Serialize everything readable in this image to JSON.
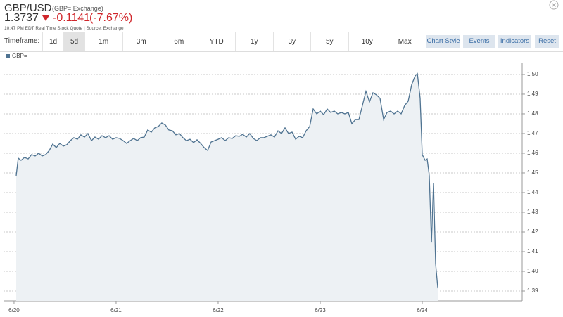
{
  "header": {
    "symbol": "GBP/USD",
    "exchange": "(GBP=:Exchange)",
    "price": "1.3737",
    "change": "-0.1141",
    "change_pct": "(-7.67%)",
    "quote_info": "10:47 PM EDT Real Time Stock Quote | Source: Exchange"
  },
  "toolbar": {
    "label": "Timeframe:",
    "ranges": [
      "1d",
      "5d",
      "1m",
      "3m",
      "6m",
      "YTD",
      "1y",
      "3y",
      "5y",
      "10y",
      "Max"
    ],
    "selected": 1,
    "buttons": [
      "Chart Style",
      "Events",
      "Indicators",
      "Reset"
    ]
  },
  "chart_data": {
    "type": "line",
    "grid": true,
    "x": [
      0.021,
      0.041,
      0.069,
      0.103,
      0.138,
      0.172,
      0.207,
      0.241,
      0.276,
      0.31,
      0.345,
      0.379,
      0.414,
      0.448,
      0.483,
      0.517,
      0.552,
      0.586,
      0.621,
      0.655,
      0.69,
      0.724,
      0.759,
      0.793,
      0.828,
      0.862,
      0.897,
      0.931,
      0.966,
      1,
      1.034,
      1.069,
      1.103,
      1.138,
      1.172,
      1.207,
      1.241,
      1.276,
      1.31,
      1.345,
      1.379,
      1.414,
      1.448,
      1.483,
      1.517,
      1.552,
      1.586,
      1.621,
      1.655,
      1.69,
      1.724,
      1.759,
      1.793,
      1.828,
      1.862,
      1.897,
      1.931,
      1.966,
      2,
      2.034,
      2.069,
      2.103,
      2.138,
      2.172,
      2.207,
      2.241,
      2.276,
      2.31,
      2.345,
      2.379,
      2.414,
      2.448,
      2.483,
      2.517,
      2.552,
      2.586,
      2.621,
      2.655,
      2.69,
      2.724,
      2.759,
      2.793,
      2.828,
      2.862,
      2.897,
      2.931,
      2.966,
      3,
      3.034,
      3.069,
      3.103,
      3.138,
      3.172,
      3.207,
      3.241,
      3.276,
      3.31,
      3.345,
      3.379,
      3.414,
      3.448,
      3.483,
      3.517,
      3.552,
      3.586,
      3.621,
      3.655,
      3.69,
      3.724,
      3.759,
      3.793,
      3.828,
      3.862,
      3.897,
      3.931,
      3.952,
      3.979,
      4,
      4.028,
      4.048,
      4.069,
      4.09,
      4.11,
      4.131,
      4.152
    ],
    "series": [
      {
        "name": "GBP=",
        "color": "#4f7391",
        "values": [
          1.4486,
          1.4575,
          1.4564,
          1.4579,
          1.4571,
          1.4593,
          1.4586,
          1.46,
          1.4586,
          1.4593,
          1.4614,
          1.4646,
          1.4629,
          1.465,
          1.4636,
          1.4643,
          1.4664,
          1.4679,
          1.4671,
          1.4693,
          1.4682,
          1.47,
          1.4664,
          1.4682,
          1.4671,
          1.4689,
          1.4679,
          1.4689,
          1.4671,
          1.4679,
          1.4675,
          1.4664,
          1.465,
          1.4664,
          1.4675,
          1.4664,
          1.4679,
          1.4682,
          1.4718,
          1.4707,
          1.4729,
          1.4736,
          1.4754,
          1.4743,
          1.4718,
          1.4714,
          1.4693,
          1.47,
          1.4679,
          1.4664,
          1.4671,
          1.4654,
          1.4668,
          1.465,
          1.4629,
          1.4614,
          1.4657,
          1.4664,
          1.4671,
          1.4679,
          1.4664,
          1.4679,
          1.4675,
          1.4689,
          1.4686,
          1.4696,
          1.4682,
          1.47,
          1.4675,
          1.4664,
          1.4679,
          1.4679,
          1.4686,
          1.4693,
          1.4682,
          1.4714,
          1.47,
          1.4729,
          1.47,
          1.4707,
          1.4671,
          1.4686,
          1.4679,
          1.4714,
          1.4736,
          1.4825,
          1.48,
          1.4814,
          1.4796,
          1.4825,
          1.4807,
          1.4814,
          1.48,
          1.4807,
          1.48,
          1.4807,
          1.475,
          1.4771,
          1.4771,
          1.4843,
          1.4914,
          1.4861,
          1.4907,
          1.4896,
          1.4879,
          1.4771,
          1.4807,
          1.4814,
          1.48,
          1.4814,
          1.48,
          1.4843,
          1.4864,
          1.495,
          1.4993,
          1.5004,
          1.4879,
          1.4593,
          1.4564,
          1.4571,
          1.4486,
          1.4146,
          1.445,
          1.4039,
          1.3914
        ]
      }
    ],
    "xlim": [
      -0.103,
      4.979
    ],
    "xticks": [
      {
        "value": 0,
        "label": "6/20"
      },
      {
        "value": 1,
        "label": "6/21"
      },
      {
        "value": 2,
        "label": "6/22"
      },
      {
        "value": 3,
        "label": "6/23"
      },
      {
        "value": 4,
        "label": "6/24"
      }
    ],
    "ylim": [
      1.385,
      1.5057
    ],
    "yticks": [
      1.39,
      {
        "value": 1.4,
        "label": "1.40"
      },
      1.41,
      1.42,
      1.43,
      1.44,
      1.45,
      1.46,
      1.47,
      1.48,
      1.49,
      {
        "value": 1.5,
        "label": "1.50"
      }
    ]
  }
}
